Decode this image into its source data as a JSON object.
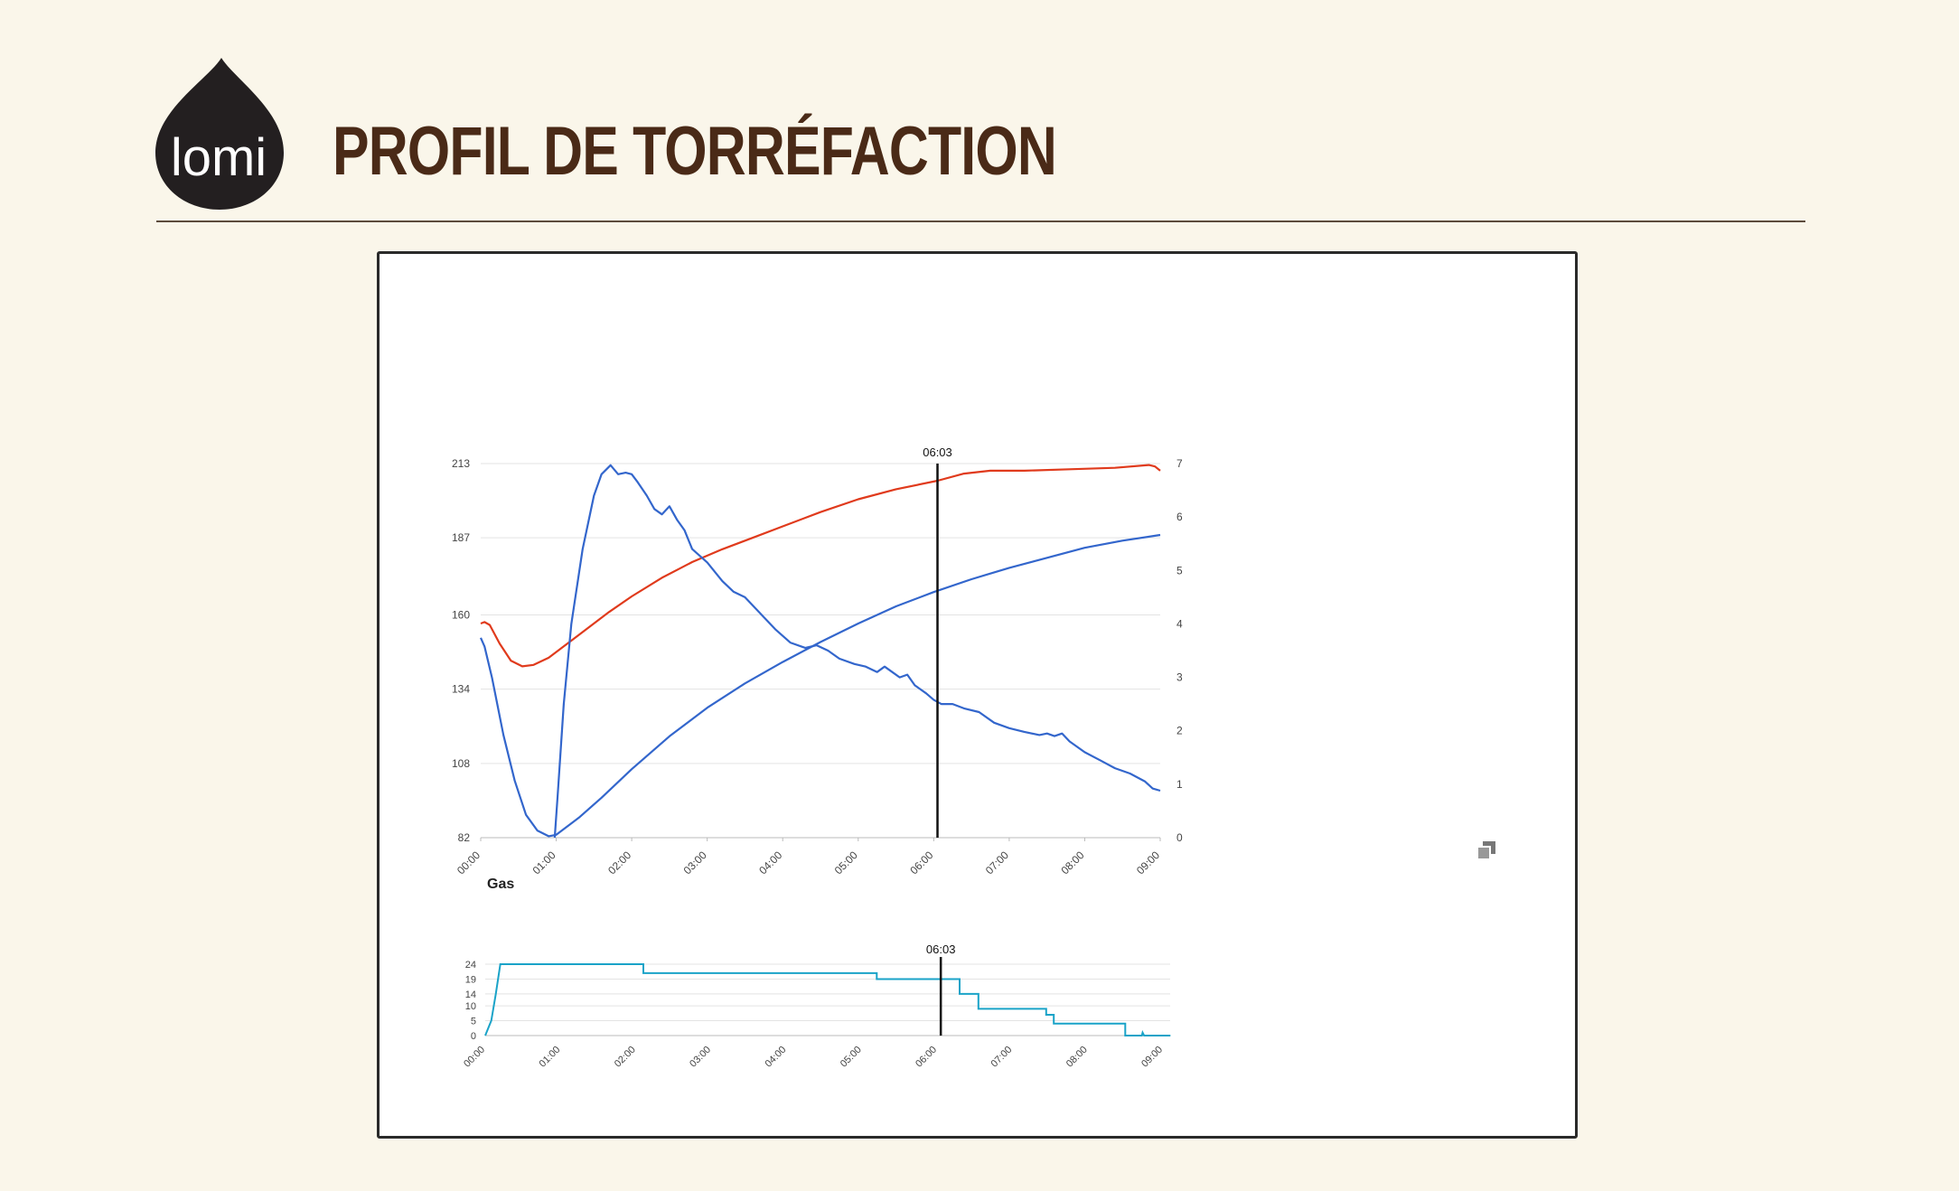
{
  "logo": {
    "text": "lomi",
    "color": "#231f20"
  },
  "title": "PROFIL DE TORRÉFACTION",
  "colors": {
    "background": "#faf6ea",
    "title": "#4a2a17",
    "rule": "#5c4b3c"
  },
  "toolbar": {
    "expand_icon": "expand-icon"
  },
  "chart_data": [
    {
      "type": "line",
      "x_ticks": [
        "00:00",
        "01:00",
        "02:00",
        "03:00",
        "04:00",
        "05:00",
        "06:00",
        "07:00",
        "08:00",
        "09:00"
      ],
      "xlim": [
        "00:00",
        "09:00"
      ],
      "y_left": {
        "ticks": [
          "82",
          "108",
          "134",
          "160",
          "187",
          "213"
        ],
        "lim": [
          82,
          213
        ]
      },
      "y_right": {
        "ticks": [
          "0",
          "1",
          "2",
          "3",
          "4",
          "5",
          "6",
          "7"
        ],
        "lim": [
          0,
          7
        ]
      },
      "grid": true,
      "cursor": {
        "time": "06:03",
        "label": "06:03"
      },
      "series": [
        {
          "color": "#e03a1c",
          "axis": "left",
          "points": [
            [
              0,
              157
            ],
            [
              0.05,
              157.5
            ],
            [
              0.12,
              156.5
            ],
            [
              0.25,
              150
            ],
            [
              0.4,
              144
            ],
            [
              0.55,
              142
            ],
            [
              0.7,
              142.5
            ],
            [
              0.9,
              145
            ],
            [
              1.1,
              149
            ],
            [
              1.4,
              155
            ],
            [
              1.7,
              161
            ],
            [
              2.0,
              166.5
            ],
            [
              2.4,
              173
            ],
            [
              2.8,
              178.5
            ],
            [
              3.2,
              183
            ],
            [
              3.6,
              187
            ],
            [
              4.0,
              191
            ],
            [
              4.5,
              196
            ],
            [
              5.0,
              200.5
            ],
            [
              5.5,
              204
            ],
            [
              6.05,
              207
            ],
            [
              6.4,
              209.5
            ],
            [
              6.75,
              210.5
            ],
            [
              7.2,
              210.5
            ],
            [
              7.8,
              211
            ],
            [
              8.4,
              211.5
            ],
            [
              8.85,
              212.5
            ],
            [
              8.93,
              212
            ],
            [
              9.0,
              210.5
            ]
          ]
        },
        {
          "color": "#3366cc",
          "axis": "left",
          "points": [
            [
              0,
              152
            ],
            [
              0.05,
              149
            ],
            [
              0.15,
              138
            ],
            [
              0.3,
              118
            ],
            [
              0.45,
              102
            ],
            [
              0.6,
              90
            ],
            [
              0.75,
              84.5
            ],
            [
              0.9,
              82.5
            ],
            [
              1.0,
              83
            ],
            [
              1.1,
              85
            ],
            [
              1.3,
              89
            ],
            [
              1.6,
              96
            ],
            [
              2.0,
              106
            ],
            [
              2.5,
              117.5
            ],
            [
              3.0,
              127.5
            ],
            [
              3.5,
              136
            ],
            [
              4.0,
              143.5
            ],
            [
              4.5,
              150.5
            ],
            [
              5.0,
              157
            ],
            [
              5.5,
              163
            ],
            [
              6.0,
              168
            ],
            [
              6.5,
              172.5
            ],
            [
              7.0,
              176.5
            ],
            [
              7.5,
              180
            ],
            [
              8.0,
              183.5
            ],
            [
              8.5,
              186
            ],
            [
              9.0,
              188
            ]
          ]
        },
        {
          "color": "#3366cc",
          "axis": "right",
          "points": [
            [
              0.98,
              0
            ],
            [
              1.02,
              0.8
            ],
            [
              1.1,
              2.5
            ],
            [
              1.2,
              4.0
            ],
            [
              1.35,
              5.4
            ],
            [
              1.5,
              6.4
            ],
            [
              1.6,
              6.8
            ],
            [
              1.72,
              6.97
            ],
            [
              1.82,
              6.8
            ],
            [
              1.92,
              6.83
            ],
            [
              2.0,
              6.8
            ],
            [
              2.08,
              6.65
            ],
            [
              2.2,
              6.4
            ],
            [
              2.3,
              6.15
            ],
            [
              2.4,
              6.05
            ],
            [
              2.5,
              6.2
            ],
            [
              2.6,
              5.95
            ],
            [
              2.7,
              5.75
            ],
            [
              2.8,
              5.4
            ],
            [
              3.0,
              5.15
            ],
            [
              3.2,
              4.8
            ],
            [
              3.35,
              4.6
            ],
            [
              3.5,
              4.5
            ],
            [
              3.7,
              4.2
            ],
            [
              3.9,
              3.9
            ],
            [
              4.1,
              3.65
            ],
            [
              4.3,
              3.55
            ],
            [
              4.45,
              3.6
            ],
            [
              4.6,
              3.5
            ],
            [
              4.75,
              3.35
            ],
            [
              4.95,
              3.25
            ],
            [
              5.1,
              3.2
            ],
            [
              5.25,
              3.1
            ],
            [
              5.35,
              3.2
            ],
            [
              5.45,
              3.1
            ],
            [
              5.55,
              3.0
            ],
            [
              5.65,
              3.05
            ],
            [
              5.75,
              2.85
            ],
            [
              5.9,
              2.7
            ],
            [
              6.0,
              2.58
            ],
            [
              6.1,
              2.5
            ],
            [
              6.25,
              2.5
            ],
            [
              6.4,
              2.42
            ],
            [
              6.6,
              2.35
            ],
            [
              6.8,
              2.15
            ],
            [
              7.0,
              2.05
            ],
            [
              7.2,
              1.98
            ],
            [
              7.4,
              1.92
            ],
            [
              7.5,
              1.95
            ],
            [
              7.6,
              1.9
            ],
            [
              7.7,
              1.95
            ],
            [
              7.8,
              1.8
            ],
            [
              8.0,
              1.6
            ],
            [
              8.2,
              1.45
            ],
            [
              8.4,
              1.3
            ],
            [
              8.6,
              1.2
            ],
            [
              8.8,
              1.05
            ],
            [
              8.9,
              0.92
            ],
            [
              9.0,
              0.88
            ]
          ]
        }
      ]
    },
    {
      "type": "line",
      "title": "Gas",
      "x_ticks": [
        "00:00",
        "01:00",
        "02:00",
        "03:00",
        "04:00",
        "05:00",
        "06:00",
        "07:00",
        "08:00",
        "09:00"
      ],
      "xlim": [
        "00:00",
        "09:00"
      ],
      "y_ticks": [
        "0",
        "5",
        "10",
        "14",
        "19",
        "24"
      ],
      "ylim": [
        0,
        24
      ],
      "grid": true,
      "cursor": {
        "time": "06:03",
        "label": "06:03"
      },
      "series": [
        {
          "color": "#1aa3c8",
          "points": [
            [
              0,
              0
            ],
            [
              0.08,
              5
            ],
            [
              0.14,
              14
            ],
            [
              0.2,
              24
            ],
            [
              2.1,
              24
            ],
            [
              2.1,
              21
            ],
            [
              5.2,
              21
            ],
            [
              5.2,
              19
            ],
            [
              6.3,
              19
            ],
            [
              6.3,
              14
            ],
            [
              6.55,
              14
            ],
            [
              6.55,
              9
            ],
            [
              7.45,
              9
            ],
            [
              7.45,
              7
            ],
            [
              7.55,
              7
            ],
            [
              7.55,
              4
            ],
            [
              8.5,
              4
            ],
            [
              8.5,
              0
            ],
            [
              8.72,
              0
            ],
            [
              8.73,
              1
            ],
            [
              8.75,
              0
            ],
            [
              9.1,
              0
            ]
          ]
        }
      ]
    }
  ]
}
